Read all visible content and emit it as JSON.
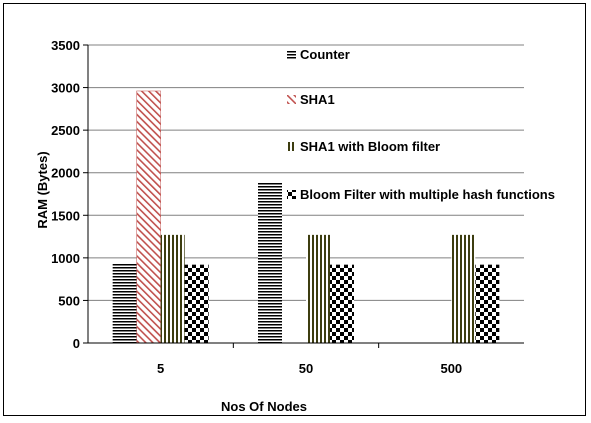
{
  "chart_data": {
    "type": "bar",
    "categories": [
      "5",
      "50",
      "500"
    ],
    "series": [
      {
        "name": "Counter",
        "values": [
          940,
          1880,
          0
        ],
        "color": "#000000",
        "pattern": "horizontal-lines"
      },
      {
        "name": "SHA1",
        "values": [
          2960,
          0,
          0
        ],
        "color": "#c0504d",
        "pattern": "diagonal-lines"
      },
      {
        "name": "SHA1 with Bloom filter",
        "values": [
          1270,
          1270,
          1270
        ],
        "color": "#4a4a1a",
        "pattern": "vertical-lines"
      },
      {
        "name": "Bloom Filter with multiple hash functions",
        "values": [
          920,
          920,
          920
        ],
        "color": "#000000",
        "pattern": "checkerboard"
      }
    ],
    "title": "",
    "xlabel": "Nos Of Nodes",
    "ylabel": "RAM (Bytes)",
    "ylim": [
      0,
      3500
    ],
    "yticks": [
      "0",
      "500",
      "1000",
      "1500",
      "2000",
      "2500",
      "3000",
      "3500"
    ],
    "grid": true,
    "legend_position": "inside-right"
  }
}
